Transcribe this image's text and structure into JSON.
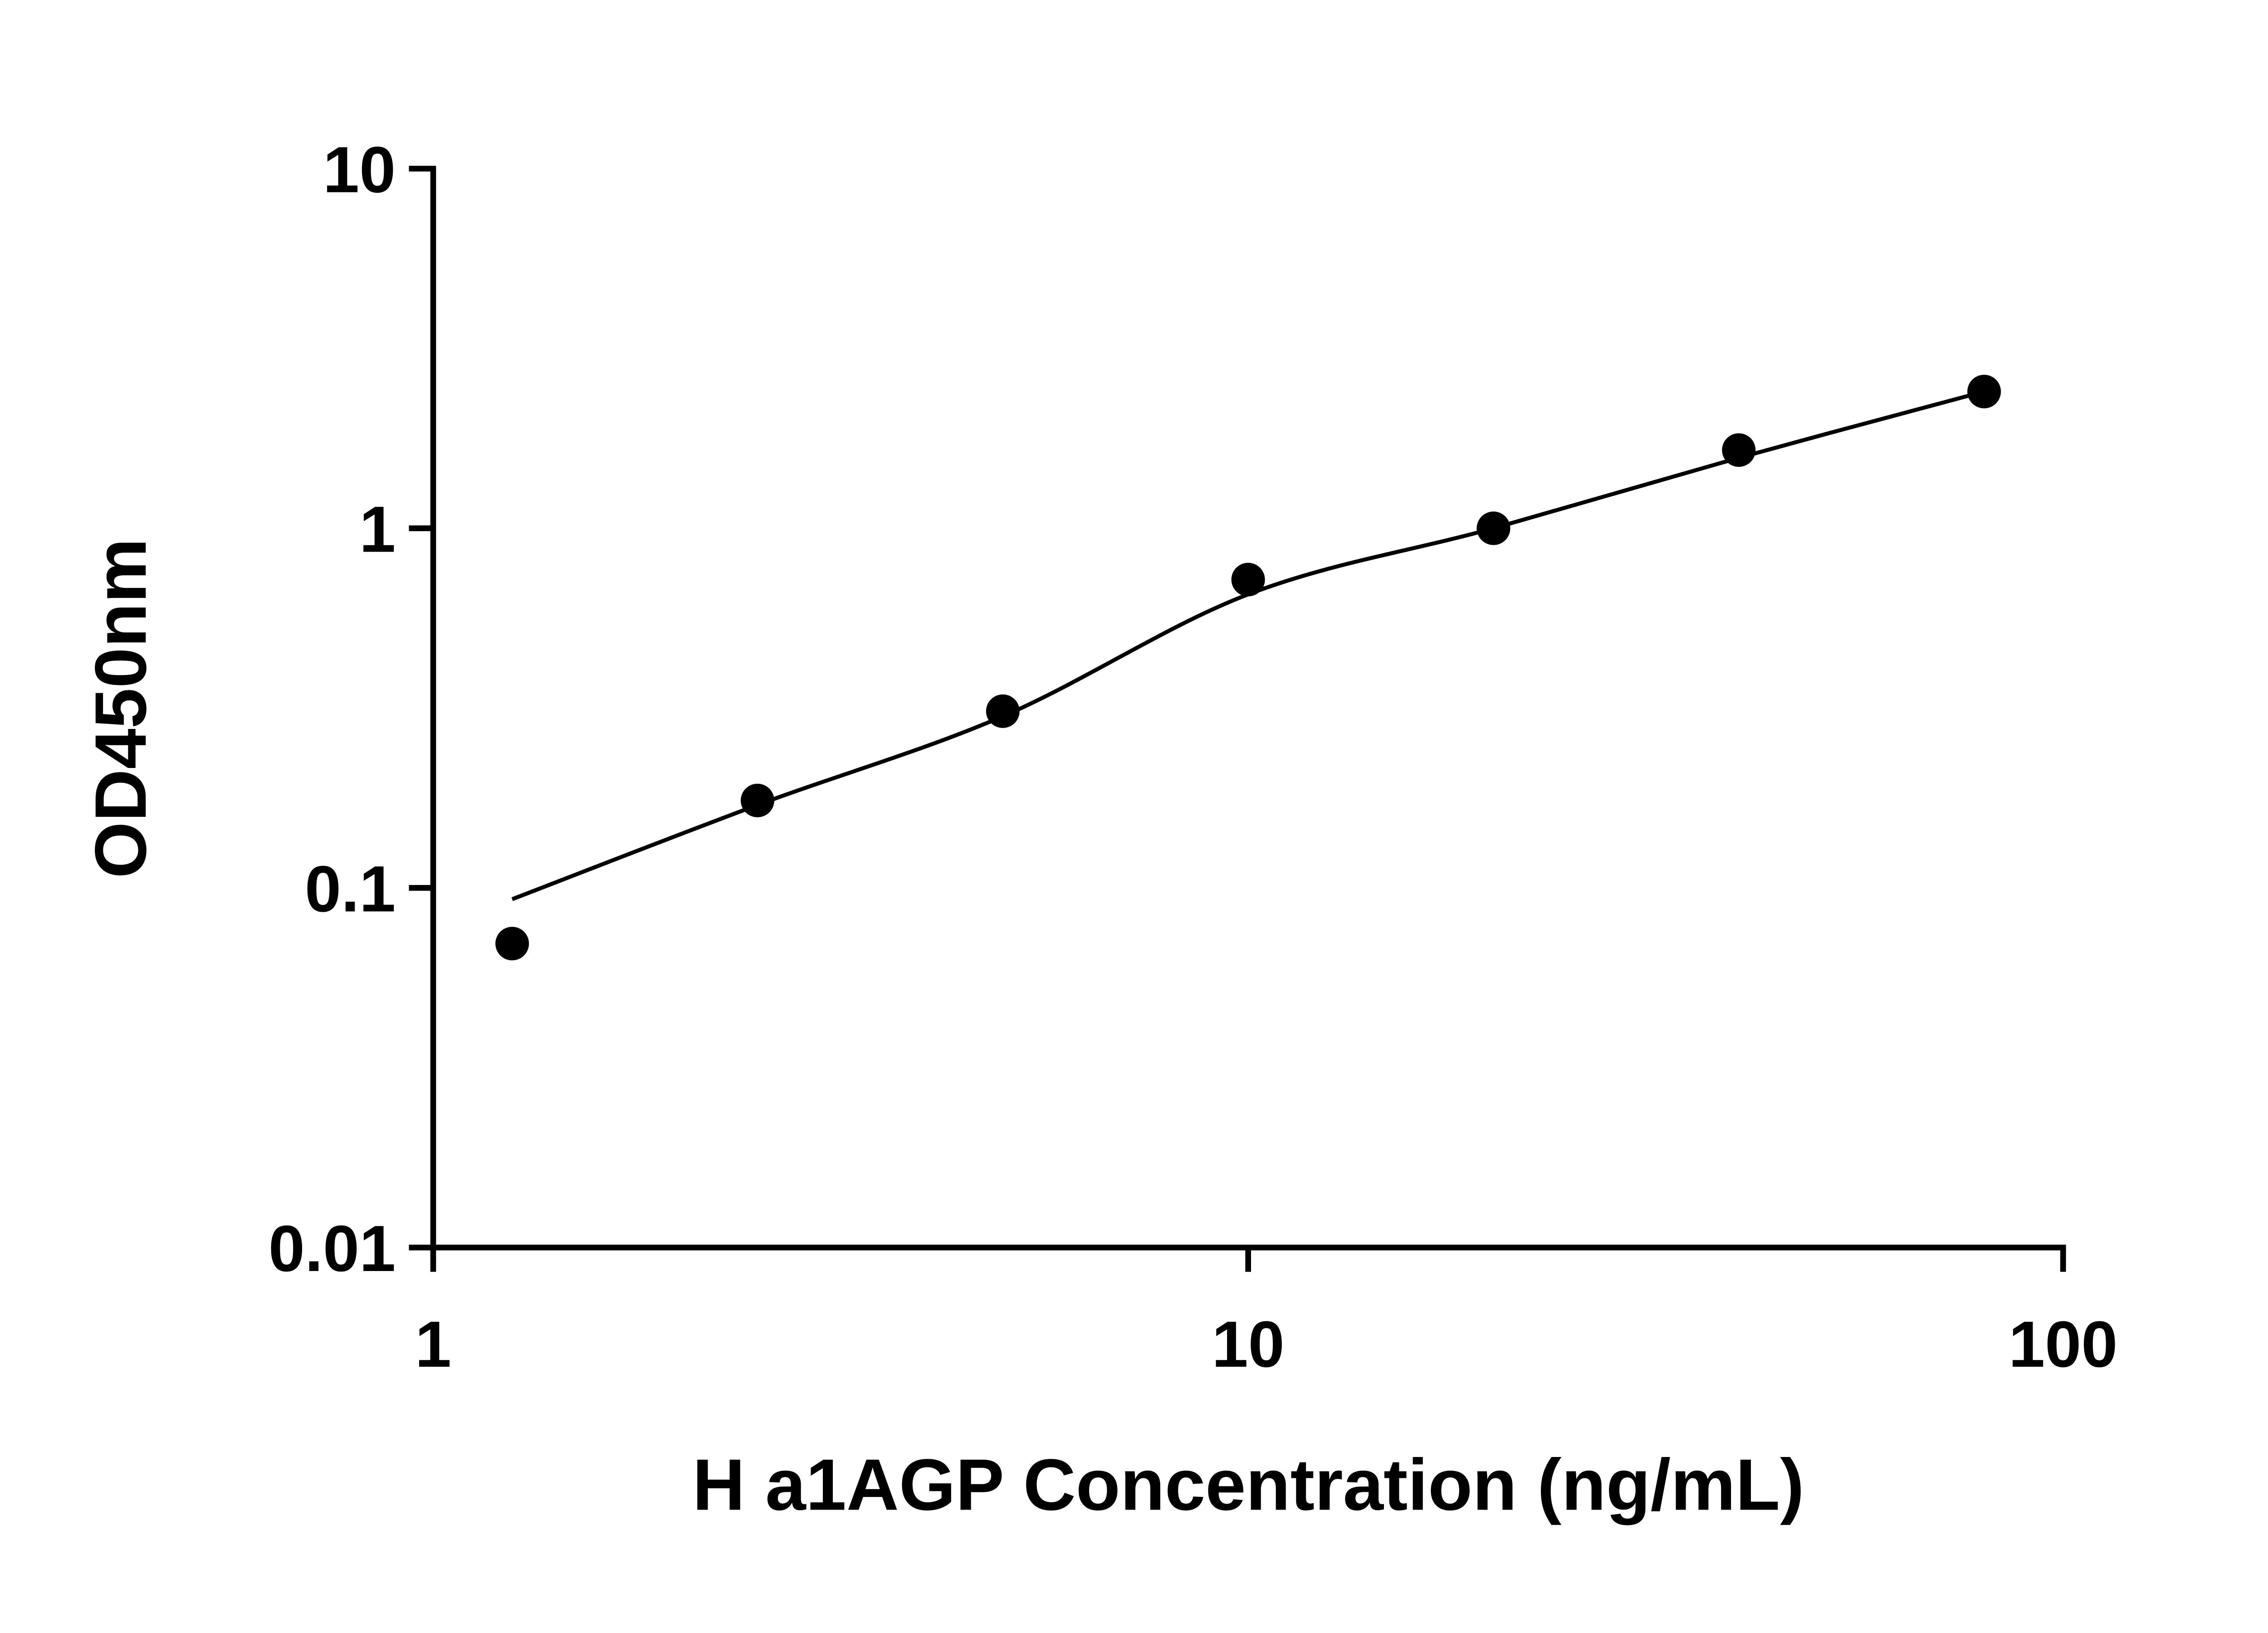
{
  "chart_data": {
    "type": "scatter",
    "title": "",
    "xlabel": "H a1AGP Concentration (ng/mL)",
    "ylabel": "OD450nm",
    "x_scale": "log",
    "y_scale": "log",
    "xlim": [
      1,
      100
    ],
    "ylim": [
      0.01,
      10
    ],
    "grid": false,
    "legend": "none",
    "background_color": "#ffffff",
    "axis_color": "#000000",
    "x_ticks": [
      {
        "value": 1,
        "label": "1"
      },
      {
        "value": 10,
        "label": "10"
      },
      {
        "value": 100,
        "label": "100"
      }
    ],
    "y_ticks": [
      {
        "value": 0.01,
        "label": "0.01"
      },
      {
        "value": 0.1,
        "label": "0.1"
      },
      {
        "value": 1,
        "label": "1"
      },
      {
        "value": 10,
        "label": "10"
      }
    ],
    "series": [
      {
        "name": "standard-points",
        "marker": "filled-circle",
        "color": "#000000",
        "points": [
          {
            "x": 1.25,
            "y": 0.07
          },
          {
            "x": 2.5,
            "y": 0.175
          },
          {
            "x": 5,
            "y": 0.31
          },
          {
            "x": 10,
            "y": 0.72
          },
          {
            "x": 20,
            "y": 1.0
          },
          {
            "x": 40,
            "y": 1.65
          },
          {
            "x": 80,
            "y": 2.4
          }
        ]
      }
    ],
    "fit_curve": {
      "name": "standard-curve-fit",
      "color": "#000000",
      "points": [
        {
          "x": 1.25,
          "y": 0.093
        },
        {
          "x": 2.5,
          "y": 0.17
        },
        {
          "x": 5,
          "y": 0.3
        },
        {
          "x": 10,
          "y": 0.655
        },
        {
          "x": 20,
          "y": 1.0
        },
        {
          "x": 40,
          "y": 1.57
        },
        {
          "x": 80,
          "y": 2.4
        }
      ]
    }
  }
}
